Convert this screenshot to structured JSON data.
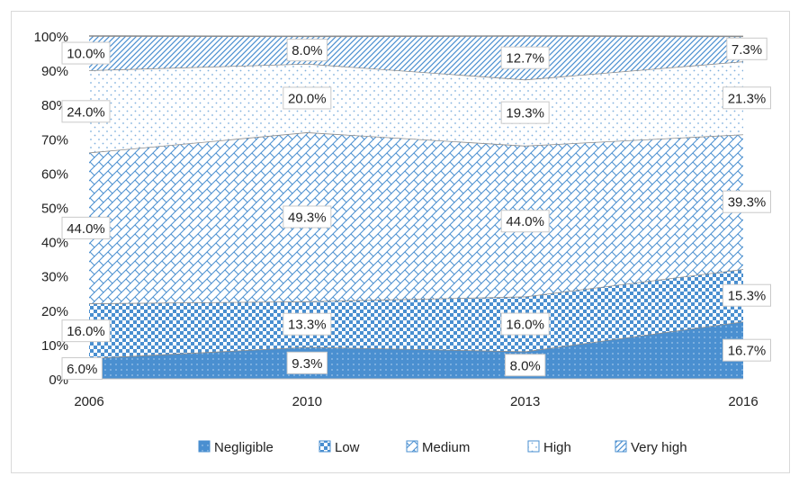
{
  "chart_data": {
    "type": "area",
    "stacked": true,
    "percent": true,
    "x": [
      "2006",
      "2010",
      "2013",
      "2016"
    ],
    "ylim": [
      0,
      100
    ],
    "yticks": [
      "0%",
      "10%",
      "20%",
      "30%",
      "40%",
      "50%",
      "60%",
      "70%",
      "80%",
      "90%",
      "100%"
    ],
    "legend_position": "bottom",
    "grid": false,
    "series": [
      {
        "name": "Negligible",
        "values": [
          6.0,
          9.3,
          8.0,
          16.7
        ],
        "labels": [
          "6.0%",
          "9.3%",
          "8.0%",
          "16.7%"
        ],
        "color": "#4a8fd0",
        "pattern": "solid-dots"
      },
      {
        "name": "Low",
        "values": [
          16.0,
          13.3,
          16.0,
          15.3
        ],
        "labels": [
          "16.0%",
          "13.3%",
          "16.0%",
          "15.3%"
        ],
        "color": "#4a8fd0",
        "pattern": "checker"
      },
      {
        "name": "Medium",
        "values": [
          44.0,
          49.3,
          44.0,
          39.3
        ],
        "labels": [
          "44.0%",
          "49.3%",
          "44.0%",
          "39.3%"
        ],
        "color": "#4a8fd0",
        "pattern": "brick"
      },
      {
        "name": "High",
        "values": [
          24.0,
          20.0,
          19.3,
          21.3
        ],
        "labels": [
          "24.0%",
          "20.0%",
          "19.3%",
          "21.3%"
        ],
        "color": "#4a8fd0",
        "pattern": "dots"
      },
      {
        "name": "Very high",
        "values": [
          10.0,
          8.0,
          12.7,
          7.3
        ],
        "labels": [
          "10.0%",
          "8.0%",
          "12.7%",
          "7.3%"
        ],
        "color": "#4a8fd0",
        "pattern": "diagonal"
      }
    ]
  }
}
